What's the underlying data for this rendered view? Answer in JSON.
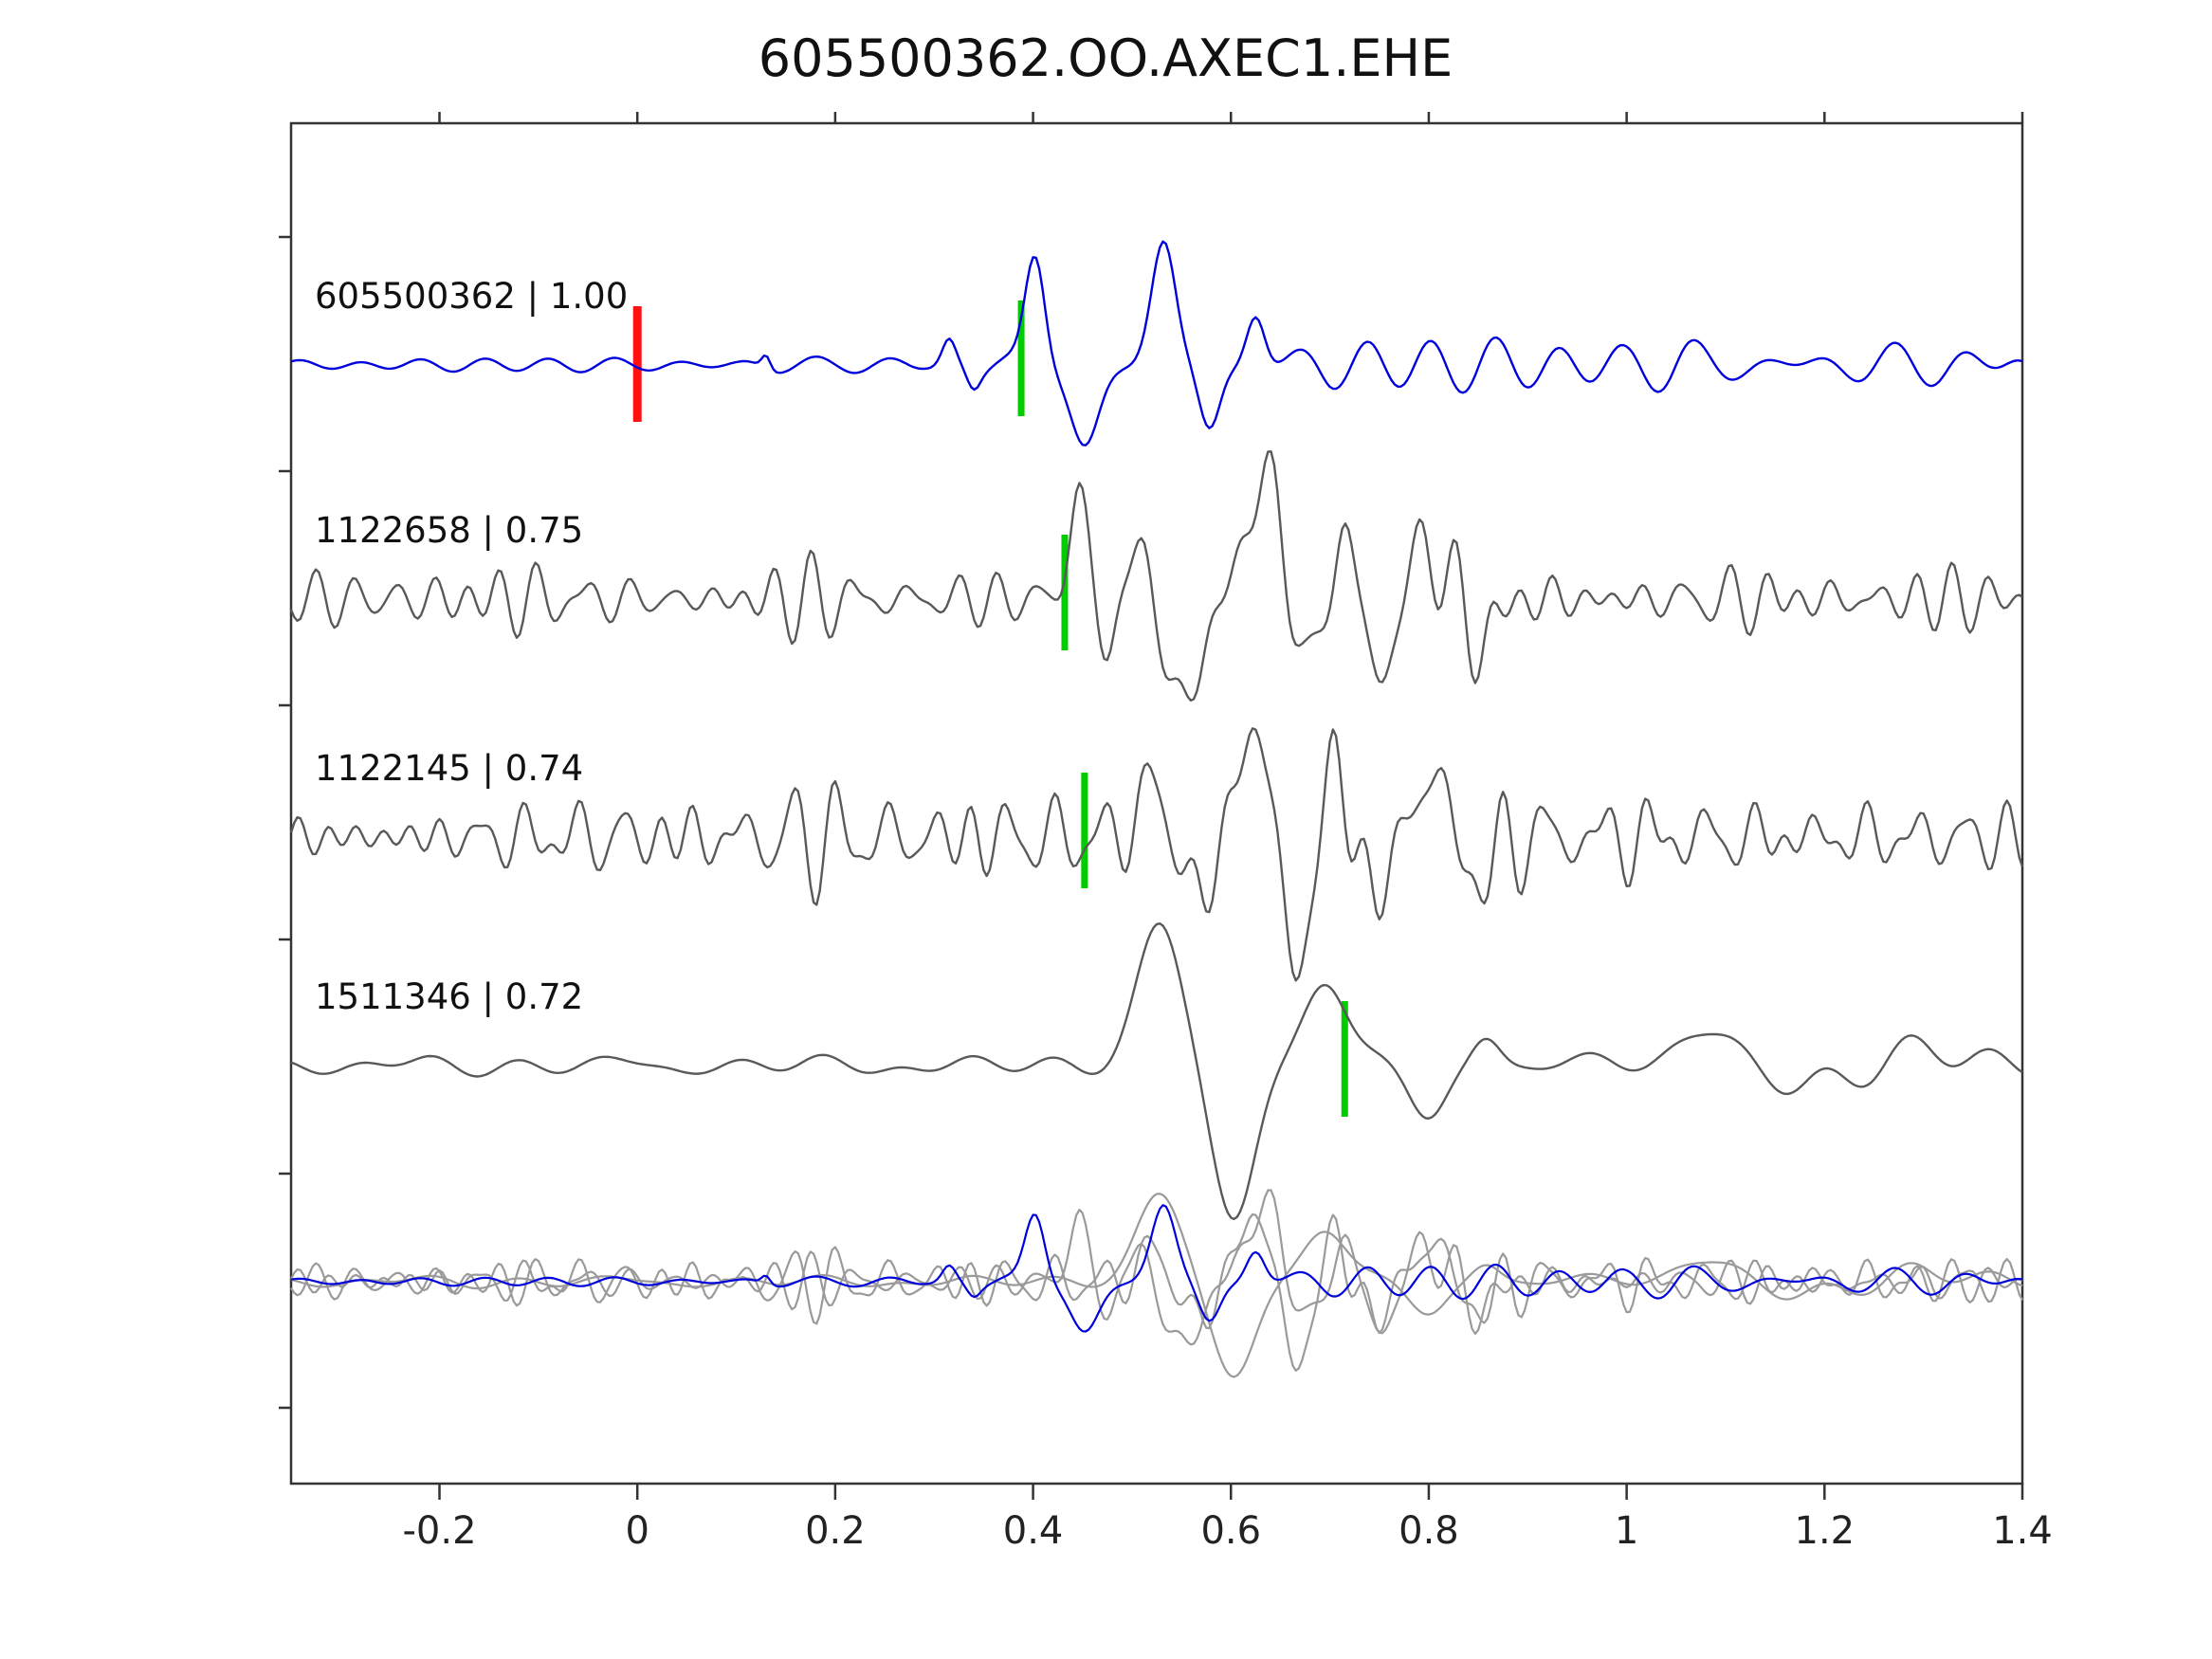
{
  "title": "605500362.OO.AXEC1.EHE",
  "chart_data": {
    "type": "line",
    "title": "605500362.OO.AXEC1.EHE",
    "xlabel": "",
    "ylabel": "",
    "grid": false,
    "legend": "none",
    "x_range": [
      -0.35,
      1.4
    ],
    "x_ticks": [
      -0.2,
      0,
      0.2,
      0.4,
      0.6,
      0.8,
      1,
      1.2,
      1.4
    ],
    "x_tick_labels": [
      "-0.2",
      "0",
      "0.2",
      "0.4",
      "0.6",
      "0.8",
      "1",
      "1.2",
      "1.4"
    ],
    "colors": {
      "template_blue": "#0000dd",
      "trace_gray": "#595959",
      "overlay_gray": "#9a9a9a",
      "pick_green": "#00cc00",
      "pick_red": "#ff1111",
      "axis": "#333333",
      "text": "#111111"
    },
    "traces": [
      {
        "event_id": "605500362",
        "correlation": "1.00",
        "color_key": "template_blue",
        "seed": 11,
        "k": 6,
        "freq": [
          9,
          22
        ],
        "envelope": [
          [
            -0.35,
            7
          ],
          [
            0.1,
            7
          ],
          [
            0.14,
            10
          ],
          [
            0.2,
            7
          ],
          [
            0.29,
            8
          ],
          [
            0.315,
            15
          ],
          [
            0.35,
            10
          ],
          [
            0.4,
            6
          ],
          [
            0.5,
            8
          ],
          [
            0.62,
            18
          ],
          [
            0.7,
            30
          ],
          [
            0.85,
            26
          ],
          [
            1.0,
            22
          ],
          [
            1.05,
            30
          ],
          [
            1.15,
            22
          ],
          [
            1.4,
            20
          ]
        ],
        "peaks": [
          [
            0.13,
            14,
            0.006
          ],
          [
            0.315,
            22,
            0.009
          ],
          [
            0.34,
            -18,
            0.009
          ],
          [
            0.402,
            118,
            0.014
          ],
          [
            0.452,
            -92,
            0.02
          ],
          [
            0.532,
            132,
            0.017
          ],
          [
            0.578,
            -70,
            0.015
          ],
          [
            0.625,
            55,
            0.013
          ]
        ],
        "picks": {
          "red": 0.0,
          "green": 0.388
        }
      },
      {
        "event_id": "1122658",
        "correlation": "0.75",
        "color_key": "trace_gray",
        "seed": 22,
        "k": 7,
        "freq": [
          18,
          36
        ],
        "envelope": [
          [
            -0.35,
            30
          ],
          [
            0.3,
            32
          ],
          [
            0.42,
            30
          ],
          [
            0.5,
            35
          ],
          [
            0.9,
            40
          ],
          [
            1.4,
            33
          ]
        ],
        "peaks": [
          [
            0.445,
            108,
            0.013
          ],
          [
            0.475,
            -45,
            0.012
          ],
          [
            0.508,
            50,
            0.014
          ],
          [
            0.552,
            -125,
            0.02
          ],
          [
            0.632,
            142,
            0.02
          ],
          [
            0.678,
            -72,
            0.013
          ],
          [
            0.715,
            70,
            0.012
          ],
          [
            0.752,
            -88,
            0.015
          ],
          [
            0.798,
            62,
            0.018
          ],
          [
            0.855,
            -45,
            0.018
          ]
        ],
        "picks": {
          "green": 0.432
        }
      },
      {
        "event_id": "1122145",
        "correlation": "0.74",
        "color_key": "trace_gray",
        "seed": 33,
        "k": 7,
        "freq": [
          18,
          36
        ],
        "envelope": [
          [
            -0.35,
            38
          ],
          [
            0.2,
            42
          ],
          [
            0.35,
            50
          ],
          [
            0.5,
            45
          ],
          [
            0.75,
            50
          ],
          [
            1.0,
            48
          ],
          [
            1.4,
            40
          ]
        ],
        "peaks": [
          [
            0.52,
            55,
            0.018
          ],
          [
            0.565,
            -65,
            0.018
          ],
          [
            0.625,
            125,
            0.02
          ],
          [
            0.665,
            -145,
            0.018
          ],
          [
            0.705,
            78,
            0.014
          ],
          [
            0.748,
            -60,
            0.018
          ],
          [
            0.8,
            68,
            0.02
          ],
          [
            0.852,
            -48,
            0.018
          ]
        ],
        "picks": {
          "green": 0.452
        }
      },
      {
        "event_id": "1511346",
        "correlation": "0.72",
        "color_key": "trace_gray",
        "seed": 44,
        "k": 6,
        "freq": [
          5,
          13
        ],
        "envelope": [
          [
            -0.35,
            12
          ],
          [
            0.3,
            13
          ],
          [
            0.45,
            10
          ],
          [
            0.52,
            6
          ],
          [
            0.62,
            6
          ],
          [
            0.75,
            10
          ],
          [
            0.9,
            16
          ],
          [
            1.4,
            14
          ]
        ],
        "peaks": [
          [
            0.528,
            148,
            0.032
          ],
          [
            0.602,
            -162,
            0.03
          ],
          [
            0.695,
            92,
            0.03
          ],
          [
            0.8,
            -52,
            0.026
          ],
          [
            0.858,
            32,
            0.02
          ],
          [
            1.08,
            38,
            0.045
          ],
          [
            1.17,
            -30,
            0.04
          ],
          [
            1.3,
            18,
            0.04
          ]
        ],
        "picks": {
          "green": 0.715
        }
      }
    ],
    "overlay": {
      "scale": 0.62,
      "members": [
        {
          "source": 1,
          "color_key": "overlay_gray"
        },
        {
          "source": 2,
          "color_key": "overlay_gray"
        },
        {
          "source": 3,
          "color_key": "overlay_gray"
        },
        {
          "source": 0,
          "color_key": "template_blue"
        }
      ]
    },
    "label_separator": " | "
  }
}
